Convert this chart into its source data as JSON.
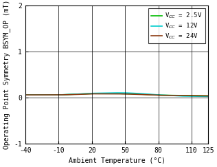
{
  "title": "",
  "xlabel": "Ambient Temperature (°C)",
  "ylabel": "Operating Point Symmetry BSYM_OP (mT)",
  "xlim": [
    -40,
    125
  ],
  "ylim": [
    -1,
    2
  ],
  "xticks": [
    -40,
    -10,
    20,
    50,
    80,
    110,
    125
  ],
  "yticks": [
    -1,
    0,
    1,
    2
  ],
  "legend": [
    {
      "label": "V$_{CC}$ = 2.5V",
      "color": "#00bb00"
    },
    {
      "label": "V$_{CC}$ = 12V",
      "color": "#00cccc"
    },
    {
      "label": "V$_{CC}$ = 24V",
      "color": "#8B3A10"
    }
  ],
  "series": [
    {
      "color": "#00bb00",
      "x": [
        -40,
        -10,
        0,
        20,
        40,
        50,
        60,
        80,
        100,
        110,
        125
      ],
      "y": [
        0.055,
        0.055,
        0.065,
        0.085,
        0.085,
        0.082,
        0.075,
        0.05,
        0.042,
        0.04,
        0.035
      ]
    },
    {
      "color": "#00cccc",
      "x": [
        -40,
        -10,
        0,
        20,
        40,
        50,
        60,
        80,
        100,
        110,
        125
      ],
      "y": [
        0.055,
        0.055,
        0.065,
        0.09,
        0.1,
        0.1,
        0.09,
        0.055,
        0.03,
        0.025,
        0.022
      ]
    },
    {
      "color": "#8B3A10",
      "x": [
        -40,
        -10,
        0,
        20,
        40,
        50,
        60,
        80,
        100,
        110,
        125
      ],
      "y": [
        0.055,
        0.055,
        0.06,
        0.078,
        0.078,
        0.075,
        0.068,
        0.048,
        0.04,
        0.038,
        0.033
      ]
    }
  ],
  "legend_fontsize": 6.5,
  "axis_fontsize": 7,
  "tick_fontsize": 7,
  "linewidth": 1.2,
  "background_color": "#ffffff"
}
